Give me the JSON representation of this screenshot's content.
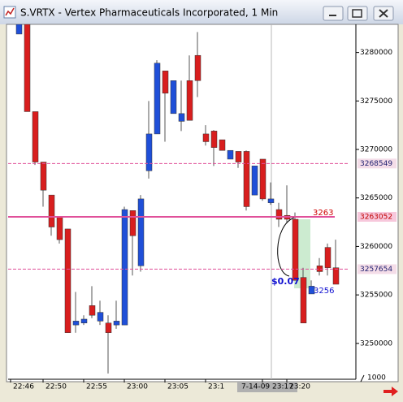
{
  "chart_data": {
    "type": "candlestick",
    "title": "S.VRTX - Vertex Pharmaceuticals Incorporated, 1 Min",
    "categories": [
      "22:46",
      null,
      null,
      null,
      "22:50",
      null,
      null,
      null,
      null,
      "22:55",
      null,
      null,
      null,
      null,
      "23:00",
      null,
      null,
      null,
      null,
      "23:05",
      null,
      null,
      null,
      null,
      "23:1",
      null,
      null,
      null,
      null,
      null,
      null,
      "7-14-09 23:17",
      null,
      null,
      "23:20",
      null,
      null,
      null,
      null,
      null
    ],
    "open": [
      3281900,
      3282900,
      3273900,
      3268700,
      3265300,
      3263000,
      3261800,
      3251900,
      3252100,
      3253900,
      3252300,
      3252100,
      3251900,
      3251900,
      3263700,
      3258000,
      3267800,
      3271600,
      3278100,
      3273700,
      3272900,
      3277100,
      3279700,
      3271600,
      3271900,
      3271000,
      3269000,
      3269800,
      3269800,
      3265300,
      3269000,
      3264500,
      3263800,
      3263200,
      3262800,
      3256800,
      3255100,
      3258000,
      3259900,
      3257800
    ],
    "high": [
      3282900,
      3282900,
      3273900,
      3268700,
      3265300,
      3263000,
      3261800,
      3255300,
      3252900,
      3255900,
      3254400,
      3252900,
      3254400,
      3264100,
      3263700,
      3265300,
      3275000,
      3279200,
      3278100,
      3277100,
      3277100,
      3279700,
      3282100,
      3272500,
      3272000,
      3271000,
      3269900,
      3269800,
      3269900,
      3268300,
      3269000,
      3266600,
      3264500,
      3266300,
      3263500,
      3257800,
      3256500,
      3258800,
      3260300,
      3260700
    ],
    "low": [
      3281900,
      3273900,
      3268400,
      3264100,
      3261100,
      3260300,
      3251100,
      3251100,
      3251900,
      3252600,
      3251900,
      3246900,
      3251500,
      3251900,
      3257000,
      3257400,
      3267000,
      3271600,
      3270800,
      3273700,
      3271900,
      3273000,
      3275400,
      3270400,
      3268300,
      3269900,
      3269000,
      3268100,
      3263700,
      3265300,
      3264700,
      3264300,
      3262000,
      3262400,
      3256500,
      3252100,
      3255100,
      3257000,
      3257000,
      3256100
    ],
    "close": [
      3282900,
      3273900,
      3268700,
      3265800,
      3262000,
      3260700,
      3251100,
      3252300,
      3252500,
      3252900,
      3253200,
      3251100,
      3252300,
      3263800,
      3261100,
      3264900,
      3271600,
      3278900,
      3275800,
      3277100,
      3273700,
      3273000,
      3277100,
      3270800,
      3270200,
      3269900,
      3269900,
      3268700,
      3264100,
      3268300,
      3264900,
      3264900,
      3262800,
      3262800,
      3256500,
      3252100,
      3255900,
      3257400,
      3257800,
      3256100
    ],
    "up_color": "#1f4fd8",
    "down_color": "#d81e1e",
    "ylim": [
      3246300,
      3282900
    ],
    "yticks": [
      3250000,
      3255000,
      3260000,
      3265000,
      3270000,
      3275000,
      3280000
    ],
    "levels": [
      3268549,
      3263052,
      3257654
    ],
    "level_styles": [
      "dashed",
      "solid",
      "dashed"
    ],
    "level_color": "#e0509a",
    "annotations": [
      "3263",
      "$0.07",
      "3256"
    ],
    "y_unit_label": "1000"
  }
}
